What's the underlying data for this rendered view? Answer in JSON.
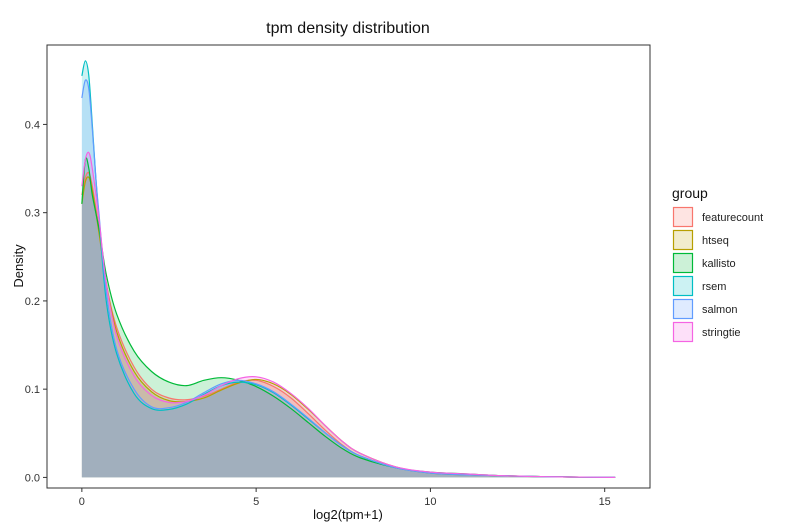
{
  "chart_data": {
    "type": "area",
    "title": "tpm density distribution",
    "xlabel": "log2(tpm+1)",
    "ylabel": "Density",
    "xlim": [
      -1.0,
      16.3
    ],
    "ylim": [
      -0.012,
      0.49
    ],
    "x_ticks": [
      0,
      5,
      10,
      15
    ],
    "y_ticks": [
      0.0,
      0.1,
      0.2,
      0.3,
      0.4
    ],
    "y_tick_labels": [
      "0.0",
      "0.1",
      "0.2",
      "0.3",
      "0.4"
    ],
    "grid": false,
    "legend": {
      "title": "group",
      "position": "right"
    },
    "fill_opacity": 0.2,
    "series": [
      {
        "name": "featurecount",
        "color": "#F8766D",
        "points": [
          [
            0,
            0.32
          ],
          [
            0.1,
            0.34
          ],
          [
            0.2,
            0.345
          ],
          [
            0.3,
            0.33
          ],
          [
            0.5,
            0.28
          ],
          [
            0.7,
            0.22
          ],
          [
            1,
            0.17
          ],
          [
            1.5,
            0.125
          ],
          [
            2,
            0.1
          ],
          [
            2.5,
            0.09
          ],
          [
            3,
            0.088
          ],
          [
            3.5,
            0.092
          ],
          [
            4,
            0.1
          ],
          [
            4.5,
            0.108
          ],
          [
            5,
            0.11
          ],
          [
            5.5,
            0.103
          ],
          [
            6,
            0.09
          ],
          [
            6.5,
            0.072
          ],
          [
            7,
            0.053
          ],
          [
            7.5,
            0.036
          ],
          [
            8,
            0.024
          ],
          [
            9,
            0.011
          ],
          [
            10,
            0.005
          ],
          [
            11,
            0.003
          ],
          [
            12,
            0.002
          ],
          [
            13,
            0.001
          ],
          [
            14,
            0.0005
          ],
          [
            15.3,
            0
          ]
        ]
      },
      {
        "name": "htseq",
        "color": "#B79F00",
        "points": [
          [
            0,
            0.31
          ],
          [
            0.1,
            0.335
          ],
          [
            0.2,
            0.34
          ],
          [
            0.3,
            0.325
          ],
          [
            0.5,
            0.275
          ],
          [
            0.7,
            0.22
          ],
          [
            1,
            0.165
          ],
          [
            1.5,
            0.12
          ],
          [
            2,
            0.097
          ],
          [
            2.5,
            0.087
          ],
          [
            3,
            0.086
          ],
          [
            3.5,
            0.09
          ],
          [
            4,
            0.099
          ],
          [
            4.5,
            0.107
          ],
          [
            5,
            0.111
          ],
          [
            5.5,
            0.106
          ],
          [
            6,
            0.094
          ],
          [
            6.5,
            0.077
          ],
          [
            7,
            0.058
          ],
          [
            7.5,
            0.04
          ],
          [
            8,
            0.027
          ],
          [
            9,
            0.012
          ],
          [
            10,
            0.005
          ],
          [
            11,
            0.003
          ],
          [
            12,
            0.002
          ],
          [
            13,
            0.001
          ],
          [
            14,
            0.0005
          ],
          [
            15.3,
            0
          ]
        ]
      },
      {
        "name": "kallisto",
        "color": "#00BA38",
        "points": [
          [
            0,
            0.31
          ],
          [
            0.1,
            0.36
          ],
          [
            0.2,
            0.35
          ],
          [
            0.3,
            0.32
          ],
          [
            0.5,
            0.28
          ],
          [
            0.7,
            0.23
          ],
          [
            1,
            0.185
          ],
          [
            1.5,
            0.143
          ],
          [
            2,
            0.12
          ],
          [
            2.5,
            0.108
          ],
          [
            3,
            0.104
          ],
          [
            3.5,
            0.11
          ],
          [
            4,
            0.113
          ],
          [
            4.5,
            0.11
          ],
          [
            5,
            0.103
          ],
          [
            5.5,
            0.092
          ],
          [
            6,
            0.078
          ],
          [
            6.5,
            0.062
          ],
          [
            7,
            0.046
          ],
          [
            7.5,
            0.032
          ],
          [
            8,
            0.022
          ],
          [
            9,
            0.011
          ],
          [
            10,
            0.006
          ],
          [
            11,
            0.004
          ],
          [
            12,
            0.002
          ],
          [
            13,
            0.001
          ],
          [
            14,
            0.0005
          ],
          [
            15.3,
            0
          ]
        ]
      },
      {
        "name": "rsem",
        "color": "#00BFC4",
        "points": [
          [
            0,
            0.455
          ],
          [
            0.1,
            0.472
          ],
          [
            0.2,
            0.455
          ],
          [
            0.3,
            0.4
          ],
          [
            0.4,
            0.34
          ],
          [
            0.5,
            0.29
          ],
          [
            0.7,
            0.2
          ],
          [
            1,
            0.14
          ],
          [
            1.5,
            0.095
          ],
          [
            2,
            0.078
          ],
          [
            2.5,
            0.077
          ],
          [
            3,
            0.083
          ],
          [
            3.5,
            0.094
          ],
          [
            4,
            0.104
          ],
          [
            4.5,
            0.108
          ],
          [
            5,
            0.105
          ],
          [
            5.5,
            0.096
          ],
          [
            6,
            0.082
          ],
          [
            6.5,
            0.066
          ],
          [
            7,
            0.05
          ],
          [
            7.5,
            0.035
          ],
          [
            8,
            0.024
          ],
          [
            9,
            0.011
          ],
          [
            10,
            0.005
          ],
          [
            11,
            0.003
          ],
          [
            12,
            0.002
          ],
          [
            13,
            0.001
          ],
          [
            14,
            0.0005
          ],
          [
            15.3,
            0
          ]
        ]
      },
      {
        "name": "salmon",
        "color": "#619CFF",
        "points": [
          [
            0,
            0.43
          ],
          [
            0.1,
            0.45
          ],
          [
            0.2,
            0.44
          ],
          [
            0.3,
            0.395
          ],
          [
            0.4,
            0.34
          ],
          [
            0.5,
            0.295
          ],
          [
            0.7,
            0.21
          ],
          [
            1,
            0.145
          ],
          [
            1.5,
            0.1
          ],
          [
            2,
            0.08
          ],
          [
            2.5,
            0.079
          ],
          [
            3,
            0.085
          ],
          [
            3.5,
            0.096
          ],
          [
            4,
            0.106
          ],
          [
            4.5,
            0.11
          ],
          [
            5,
            0.106
          ],
          [
            5.5,
            0.097
          ],
          [
            6,
            0.083
          ],
          [
            6.5,
            0.067
          ],
          [
            7,
            0.05
          ],
          [
            7.5,
            0.035
          ],
          [
            8,
            0.024
          ],
          [
            9,
            0.011
          ],
          [
            10,
            0.005
          ],
          [
            11,
            0.003
          ],
          [
            12,
            0.002
          ],
          [
            13,
            0.001
          ],
          [
            14,
            0.0005
          ],
          [
            15.3,
            0
          ]
        ]
      },
      {
        "name": "stringtie",
        "color": "#F564E3",
        "points": [
          [
            0,
            0.33
          ],
          [
            0.1,
            0.36
          ],
          [
            0.2,
            0.368
          ],
          [
            0.3,
            0.35
          ],
          [
            0.5,
            0.29
          ],
          [
            0.7,
            0.22
          ],
          [
            1,
            0.16
          ],
          [
            1.5,
            0.115
          ],
          [
            2,
            0.093
          ],
          [
            2.5,
            0.085
          ],
          [
            3,
            0.086
          ],
          [
            3.5,
            0.093
          ],
          [
            4,
            0.104
          ],
          [
            4.5,
            0.112
          ],
          [
            5,
            0.114
          ],
          [
            5.5,
            0.108
          ],
          [
            6,
            0.095
          ],
          [
            6.5,
            0.078
          ],
          [
            7,
            0.058
          ],
          [
            7.5,
            0.04
          ],
          [
            8,
            0.027
          ],
          [
            9,
            0.012
          ],
          [
            10,
            0.006
          ],
          [
            11,
            0.004
          ],
          [
            12,
            0.002
          ],
          [
            13,
            0.001
          ],
          [
            14,
            0.0005
          ],
          [
            15.3,
            0
          ]
        ]
      }
    ]
  }
}
